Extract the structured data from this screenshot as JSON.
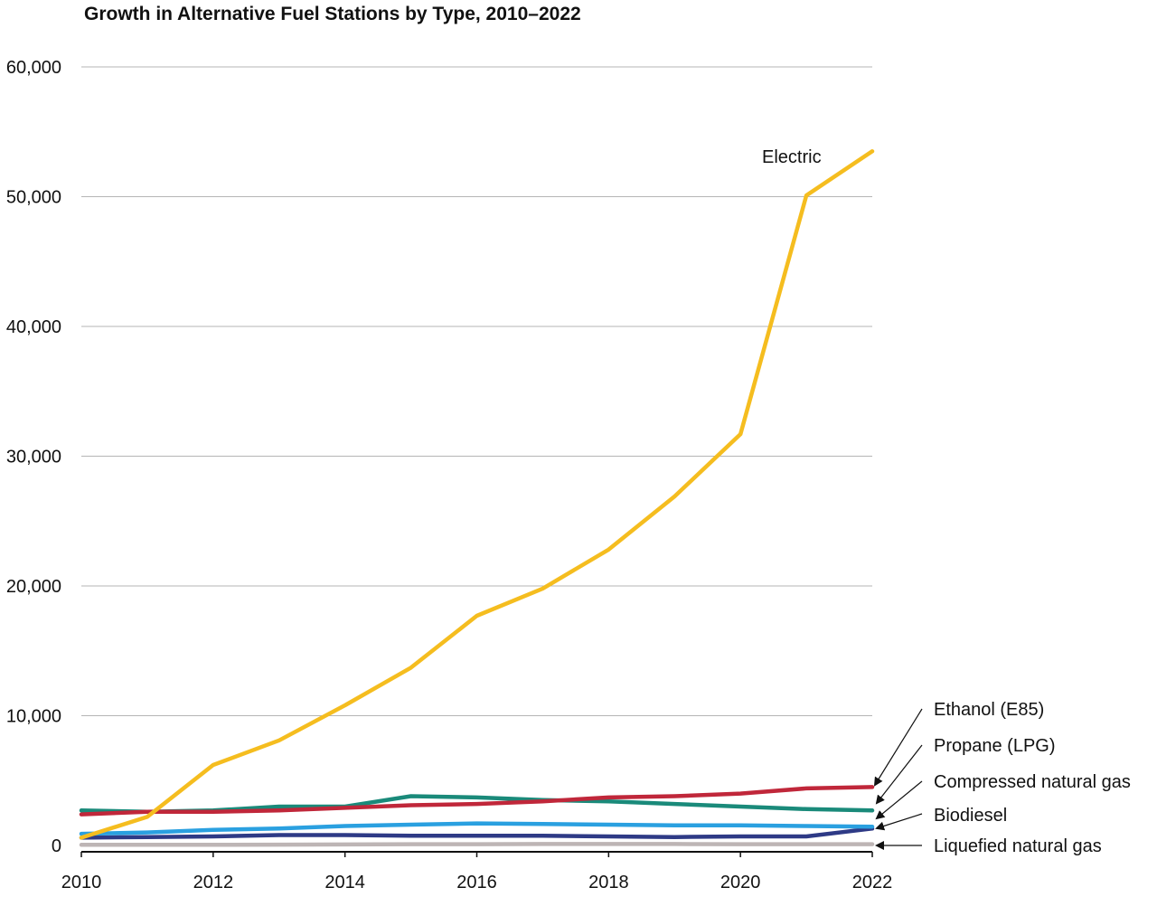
{
  "chart_data": {
    "type": "line",
    "title": "Growth in Alternative Fuel Stations by Type, 2010–2022",
    "xlabel": "",
    "ylabel": "",
    "x": [
      2010,
      2011,
      2012,
      2013,
      2014,
      2015,
      2016,
      2017,
      2018,
      2019,
      2020,
      2021,
      2022
    ],
    "xlim": [
      2010,
      2022
    ],
    "ylim": [
      0,
      60000
    ],
    "x_ticks": [
      "2010",
      "2012",
      "2014",
      "2016",
      "2018",
      "2020",
      "2022"
    ],
    "y_ticks": [
      "0",
      "10,000",
      "20,000",
      "30,000",
      "40,000",
      "50,000",
      "60,000"
    ],
    "grid": "horizontal",
    "series": [
      {
        "name": "Electric",
        "color": "#f5bd1f",
        "values": [
          600,
          2200,
          6200,
          8100,
          10800,
          13700,
          17700,
          19800,
          22800,
          26900,
          31700,
          50100,
          53500
        ]
      },
      {
        "name": "Ethanol (E85)",
        "color": "#c0273a",
        "values": [
          2400,
          2600,
          2600,
          2700,
          2900,
          3100,
          3200,
          3400,
          3700,
          3800,
          4000,
          4400,
          4500
        ]
      },
      {
        "name": "Propane (LPG)",
        "color": "#1a8a7a",
        "values": [
          2700,
          2600,
          2700,
          3000,
          3000,
          3800,
          3700,
          3500,
          3400,
          3200,
          3000,
          2800,
          2700
        ]
      },
      {
        "name": "Compressed natural gas",
        "color": "#2aa0e0",
        "values": [
          900,
          1000,
          1200,
          1300,
          1500,
          1600,
          1700,
          1650,
          1600,
          1550,
          1550,
          1500,
          1450
        ]
      },
      {
        "name": "Biodiesel",
        "color": "#2e3a86",
        "values": [
          600,
          650,
          700,
          800,
          800,
          750,
          750,
          750,
          700,
          650,
          700,
          700,
          1300
        ]
      },
      {
        "name": "Liquefied natural gas",
        "color": "#bdb5b5",
        "values": [
          50,
          50,
          50,
          60,
          80,
          100,
          100,
          110,
          110,
          110,
          100,
          100,
          100
        ]
      }
    ]
  }
}
